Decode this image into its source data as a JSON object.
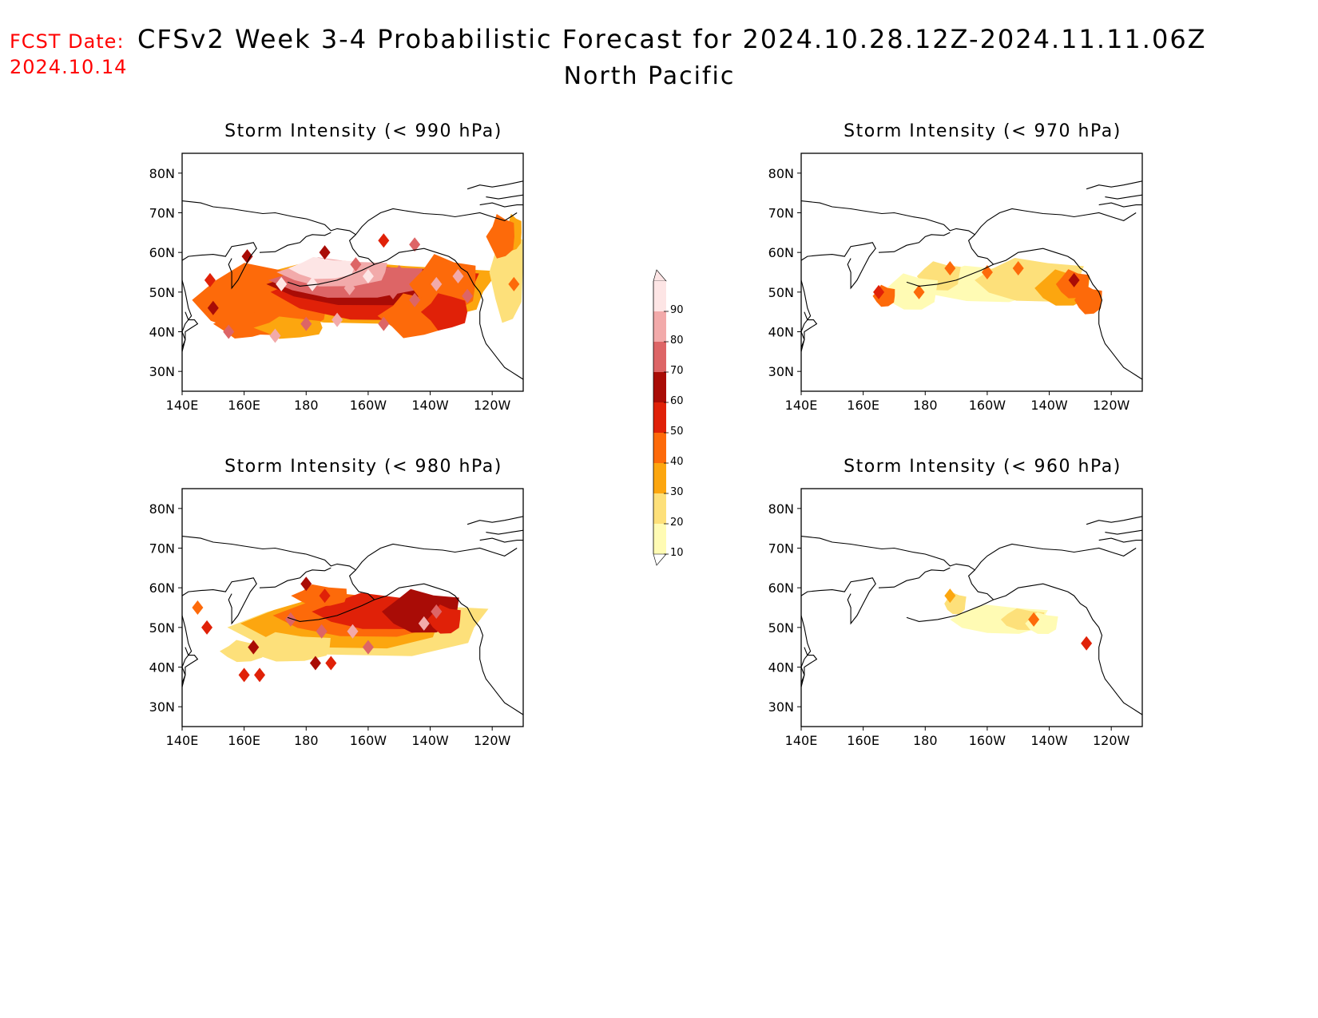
{
  "header": {
    "fcst_label": "FCST Date:",
    "fcst_date": "2024.10.14",
    "title": "CFSv2 Week 3-4 Probabilistic Forecast for 2024.10.28.12Z-2024.11.11.06Z",
    "region": "North Pacific"
  },
  "panels": [
    {
      "title": "Storm Intensity (< 990 hPa)",
      "threshold_hpa": 990
    },
    {
      "title": "Storm Intensity (< 970 hPa)",
      "threshold_hpa": 970
    },
    {
      "title": "Storm Intensity (< 980 hPa)",
      "threshold_hpa": 980
    },
    {
      "title": "Storm Intensity (< 960 hPa)",
      "threshold_hpa": 960
    }
  ],
  "axes": {
    "lon_labels": [
      "140E",
      "160E",
      "180",
      "160W",
      "140W",
      "120W"
    ],
    "lat_labels": [
      "80N",
      "70N",
      "60N",
      "50N",
      "40N",
      "30N"
    ]
  },
  "colorbar": {
    "levels": [
      "10",
      "20",
      "30",
      "40",
      "50",
      "60",
      "70",
      "80",
      "90"
    ],
    "colors": [
      "#fffbb4",
      "#fde07a",
      "#fca60f",
      "#fd6a0a",
      "#e02108",
      "#a90c06",
      "#dd6566",
      "#f2aaaa",
      "#fde5e5"
    ]
  },
  "map": {
    "land_outline_color": "#000000",
    "lon_range": [
      "140E",
      "110W"
    ],
    "lat_range": [
      "25N",
      "85N"
    ]
  }
}
